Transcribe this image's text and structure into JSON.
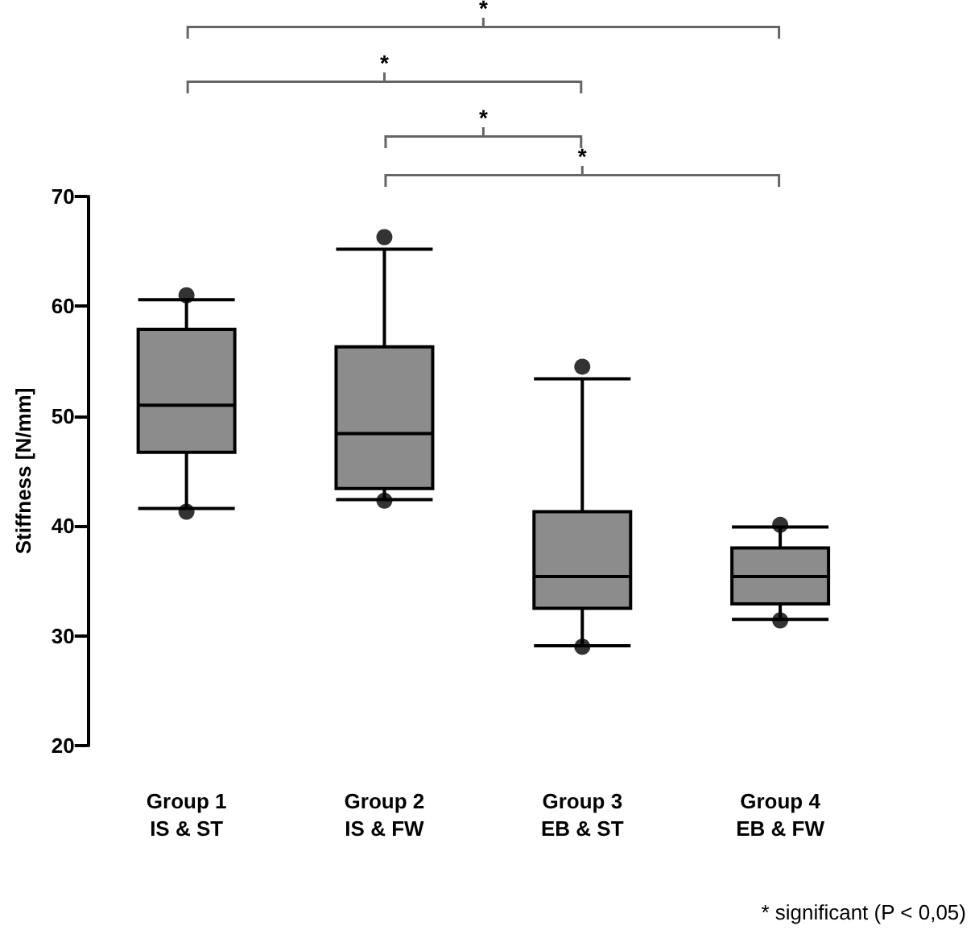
{
  "chart_data": {
    "type": "box",
    "ylabel": "Stiffness [N/mm]",
    "categories": [
      "Group 1\nIS & ST",
      "Group 2\nIS & FW",
      "Group 3\nEB & ST",
      "Group 4\nEB & FW"
    ],
    "boxes": [
      {
        "low": 41.6,
        "q1": 46.7,
        "median": 51.0,
        "q3": 57.9,
        "high": 60.6,
        "outliers": [
          61.0,
          41.3
        ]
      },
      {
        "low": 42.4,
        "q1": 43.4,
        "median": 48.4,
        "q3": 56.3,
        "high": 65.2,
        "outliers": [
          66.3,
          42.3
        ]
      },
      {
        "low": 29.1,
        "q1": 32.5,
        "median": 35.4,
        "q3": 41.3,
        "high": 53.4,
        "outliers": [
          54.5,
          29.0
        ]
      },
      {
        "low": 31.5,
        "q1": 32.9,
        "median": 35.4,
        "q3": 38.0,
        "high": 39.9,
        "outliers": [
          40.1,
          31.4
        ]
      }
    ],
    "color": "#8c8c8c",
    "ylim": [
      20,
      70
    ],
    "yticks": [
      20,
      30,
      40,
      50,
      60,
      70
    ],
    "grid": false,
    "annotations": [
      "*",
      "*",
      "*",
      "*",
      "* significant (P < 0,05)"
    ]
  }
}
